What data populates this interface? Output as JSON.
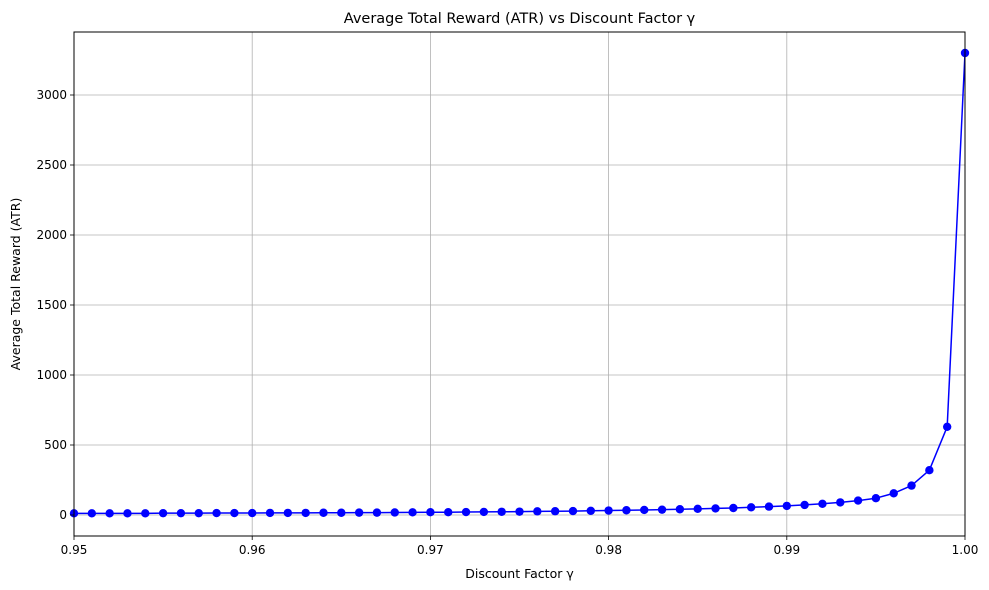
{
  "chart_data": {
    "type": "line",
    "title": "Average Total Reward (ATR) vs Discount Factor γ",
    "xlabel": "Discount Factor γ",
    "ylabel": "Average Total Reward (ATR)",
    "xlim": [
      0.95,
      1.0
    ],
    "ylim": [
      -150,
      3450
    ],
    "xticks": [
      0.95,
      0.96,
      0.97,
      0.98,
      0.99,
      1.0
    ],
    "xtick_labels": [
      "0.95",
      "0.96",
      "0.97",
      "0.98",
      "0.99",
      "1.00"
    ],
    "yticks": [
      0,
      500,
      1000,
      1500,
      2000,
      2500,
      3000
    ],
    "ytick_labels": [
      "0",
      "500",
      "1000",
      "1500",
      "2000",
      "2500",
      "3000"
    ],
    "grid": true,
    "series": [
      {
        "color": "#0000ff",
        "marker": "circle",
        "x": [
          0.95,
          0.951,
          0.952,
          0.953,
          0.954,
          0.955,
          0.956,
          0.957,
          0.958,
          0.959,
          0.96,
          0.961,
          0.962,
          0.963,
          0.964,
          0.965,
          0.966,
          0.967,
          0.968,
          0.969,
          0.97,
          0.971,
          0.972,
          0.973,
          0.974,
          0.975,
          0.976,
          0.977,
          0.978,
          0.979,
          0.98,
          0.981,
          0.982,
          0.983,
          0.984,
          0.985,
          0.986,
          0.987,
          0.988,
          0.989,
          0.99,
          0.991,
          0.992,
          0.993,
          0.994,
          0.995,
          0.996,
          0.997,
          0.998,
          0.999,
          1.0
        ],
        "y": [
          12,
          12,
          12,
          12,
          12,
          13,
          13,
          13,
          14,
          14,
          14,
          15,
          15,
          15,
          16,
          16,
          17,
          17,
          18,
          19,
          20,
          20,
          21,
          22,
          23,
          24,
          26,
          27,
          28,
          30,
          32,
          34,
          36,
          38,
          41,
          44,
          47,
          50,
          55,
          60,
          65,
          72,
          80,
          90,
          103,
          120,
          155,
          210,
          320,
          630,
          3300
        ]
      }
    ]
  }
}
